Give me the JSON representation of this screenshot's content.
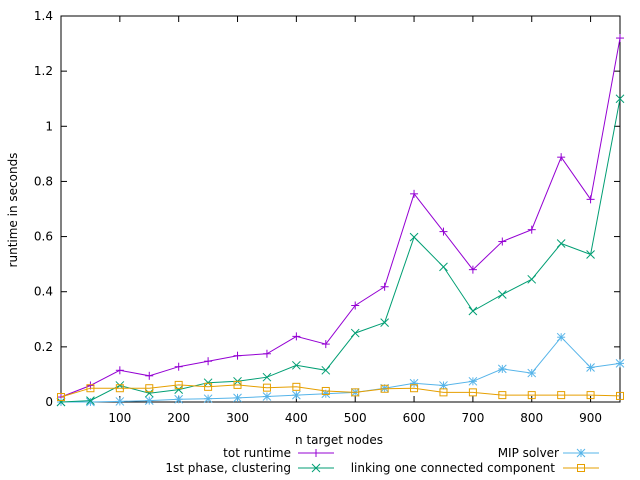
{
  "chart_data": {
    "type": "line",
    "title": "",
    "xlabel": "n target nodes",
    "ylabel": "runtime in seconds",
    "xlim": [
      0,
      950
    ],
    "ylim": [
      0,
      1.4
    ],
    "xticks": [
      100,
      200,
      300,
      400,
      500,
      600,
      700,
      800,
      900
    ],
    "yticks": [
      0,
      0.2,
      0.4,
      0.6,
      0.8,
      1,
      1.2,
      1.4
    ],
    "xtick_labels": [
      "100",
      "200",
      "300",
      "400",
      "500",
      "600",
      "700",
      "800",
      "900"
    ],
    "ytick_labels": [
      "0",
      "0.2",
      "0.4",
      "0.6",
      "0.8",
      "1",
      "1.2",
      "1.4"
    ],
    "grid": false,
    "legend_position": "bottom",
    "x": [
      0,
      50,
      100,
      150,
      200,
      250,
      300,
      350,
      400,
      450,
      500,
      550,
      600,
      650,
      700,
      750,
      800,
      850,
      900,
      950
    ],
    "series": [
      {
        "name": "tot runtime",
        "color": "#9400d3",
        "marker": "plus",
        "values": [
          0.018,
          0.06,
          0.115,
          0.095,
          0.128,
          0.148,
          0.168,
          0.175,
          0.238,
          0.21,
          0.35,
          0.418,
          0.755,
          0.618,
          0.48,
          0.582,
          0.625,
          0.888,
          0.735,
          1.32
        ]
      },
      {
        "name": "MIP solver",
        "color": "#56b4e9",
        "marker": "star",
        "values": [
          0.0,
          0.0,
          0.002,
          0.005,
          0.01,
          0.012,
          0.015,
          0.02,
          0.025,
          0.03,
          0.035,
          0.05,
          0.068,
          0.06,
          0.075,
          0.12,
          0.105,
          0.235,
          0.125,
          0.14
        ]
      },
      {
        "name": "1st phase, clustering",
        "color": "#009e73",
        "marker": "cross",
        "values": [
          0.0,
          0.005,
          0.06,
          0.032,
          0.045,
          0.07,
          0.075,
          0.09,
          0.133,
          0.115,
          0.25,
          0.288,
          0.598,
          0.49,
          0.33,
          0.39,
          0.445,
          0.575,
          0.535,
          1.1
        ]
      },
      {
        "name": "linking one connected component",
        "color": "#e69f00",
        "marker": "square",
        "values": [
          0.018,
          0.05,
          0.05,
          0.05,
          0.062,
          0.055,
          0.062,
          0.052,
          0.055,
          0.04,
          0.035,
          0.048,
          0.05,
          0.035,
          0.035,
          0.025,
          0.025,
          0.025,
          0.025,
          0.022
        ]
      }
    ]
  }
}
